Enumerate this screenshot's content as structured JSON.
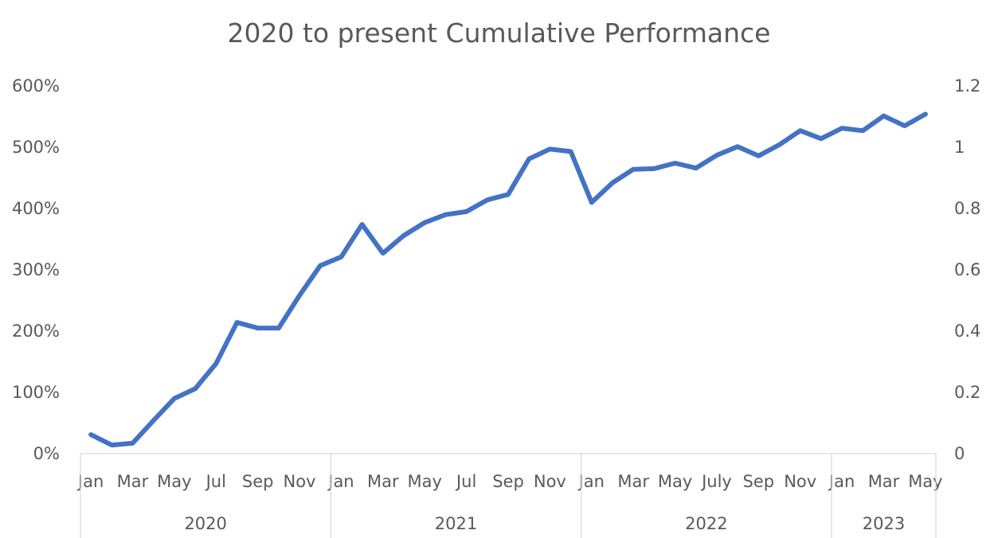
{
  "chart_data": {
    "type": "line",
    "title": "2020 to present Cumulative Performance",
    "xlabel": "",
    "ylabel": "",
    "ylim": [
      0,
      6
    ],
    "y_ticks": [
      "0%",
      "100%",
      "200%",
      "300%",
      "400%",
      "500%",
      "600%"
    ],
    "y2lim": [
      0,
      1.2
    ],
    "y2_ticks": [
      "0",
      "0.2",
      "0.4",
      "0.6",
      "0.8",
      "1",
      "1.2"
    ],
    "grid": false,
    "legend": "none",
    "line_color": "#4472C4",
    "x_tick_labels": [
      "Jan",
      "",
      "Mar",
      "",
      "May",
      "",
      "Jul",
      "",
      "Sep",
      "",
      "Nov",
      "",
      "Jan",
      "",
      "Mar",
      "",
      "May",
      "",
      "Jul",
      "",
      "Sep",
      "",
      "Nov",
      "",
      "Jan",
      "",
      "Mar",
      "",
      "May",
      "",
      "July",
      "",
      "Sep",
      "",
      "Nov",
      "",
      "Jan",
      "",
      "Mar",
      "",
      "May"
    ],
    "year_groups": [
      {
        "label": "2020",
        "count": 12
      },
      {
        "label": "2021",
        "count": 12
      },
      {
        "label": "2022",
        "count": 12
      },
      {
        "label": "2023",
        "count": 5
      }
    ],
    "series": [
      {
        "values": [
          0.31,
          0.14,
          0.17,
          0.54,
          0.9,
          1.06,
          1.47,
          2.14,
          2.05,
          2.05,
          2.58,
          3.07,
          3.21,
          3.74,
          3.27,
          3.56,
          3.77,
          3.9,
          3.95,
          4.14,
          4.23,
          4.81,
          4.97,
          4.93,
          4.1,
          4.42,
          4.64,
          4.65,
          4.74,
          4.66,
          4.87,
          5.01,
          4.86,
          5.04,
          5.27,
          5.14,
          5.31,
          5.27,
          5.51,
          5.35,
          5.54
        ]
      }
    ]
  }
}
